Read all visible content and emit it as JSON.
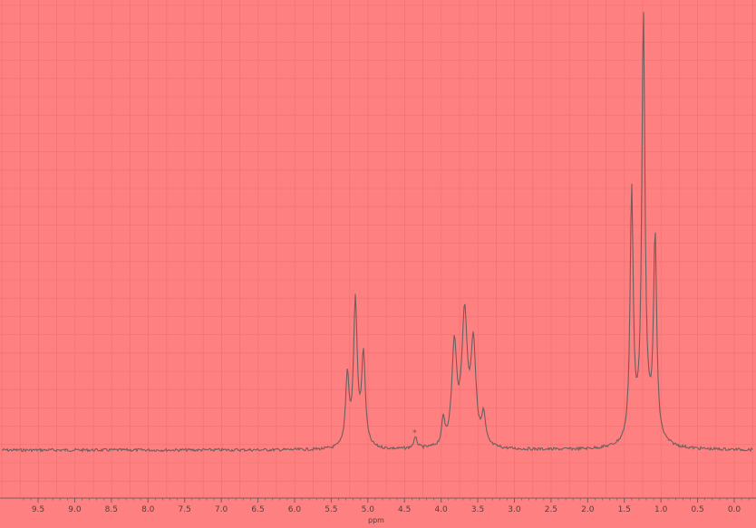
{
  "chart_data": {
    "type": "line",
    "title": "",
    "xlabel": "ppm",
    "ylabel": "",
    "x_reversed": true,
    "xlim": [
      9.8,
      -0.25
    ],
    "ylim": [
      0,
      1
    ],
    "grid": true,
    "legend": "none",
    "colors": {
      "background": "#ff8080",
      "grid": "#f07474",
      "line": "#6e5e5e",
      "axis": "#7a5a5a",
      "text": "#5a3a3a"
    },
    "x_ticks": [
      "9.5",
      "9.0",
      "8.5",
      "8.0",
      "7.5",
      "7.0",
      "6.5",
      "6.0",
      "5.5",
      "5.0",
      "4.5",
      "4.0",
      "3.5",
      "3.0",
      "2.5",
      "2.0",
      "1.5",
      "1.0",
      "0.5",
      "0.0"
    ],
    "baseline": 0.02,
    "peaks": [
      {
        "x": 5.28,
        "height": 0.17,
        "width": 0.028
      },
      {
        "x": 5.17,
        "height": 0.35,
        "width": 0.03
      },
      {
        "x": 5.06,
        "height": 0.22,
        "width": 0.03
      },
      {
        "x": 4.35,
        "height": 0.025,
        "width": 0.03
      },
      {
        "x": 3.97,
        "height": 0.06,
        "width": 0.025
      },
      {
        "x": 3.82,
        "height": 0.24,
        "width": 0.04
      },
      {
        "x": 3.68,
        "height": 0.31,
        "width": 0.045
      },
      {
        "x": 3.56,
        "height": 0.24,
        "width": 0.04
      },
      {
        "x": 3.42,
        "height": 0.07,
        "width": 0.03
      },
      {
        "x": 1.4,
        "height": 0.6,
        "width": 0.025
      },
      {
        "x": 1.24,
        "height": 1.0,
        "width": 0.025
      },
      {
        "x": 1.08,
        "height": 0.48,
        "width": 0.025
      },
      {
        "x": 1.2,
        "height": 0.05,
        "width": 0.15
      }
    ],
    "annotations": [
      {
        "text": "*",
        "x": 4.36
      }
    ]
  }
}
